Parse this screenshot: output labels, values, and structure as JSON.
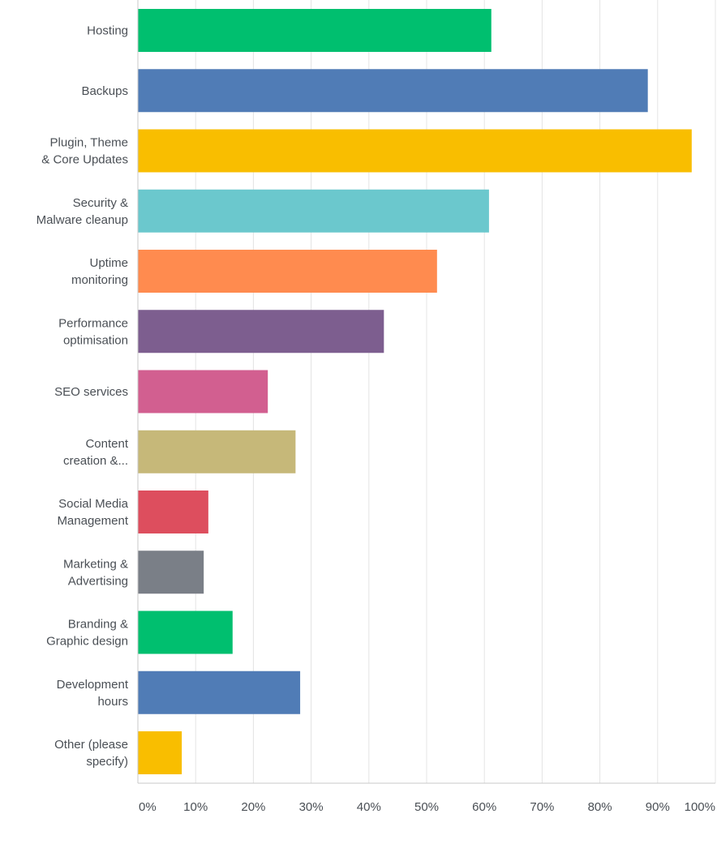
{
  "chart_data": {
    "type": "bar",
    "orientation": "horizontal",
    "title": "",
    "xlabel": "",
    "ylabel": "",
    "xlim": [
      0,
      100
    ],
    "grid": true,
    "legend": "none",
    "categories": [
      [
        "Hosting"
      ],
      [
        "Backups"
      ],
      [
        "Plugin, Theme",
        "& Core Updates"
      ],
      [
        "Security &",
        "Malware cleanup"
      ],
      [
        "Uptime",
        "monitoring"
      ],
      [
        "Performance",
        "optimisation"
      ],
      [
        "SEO services"
      ],
      [
        "Content",
        "creation &..."
      ],
      [
        "Social Media",
        "Management"
      ],
      [
        "Marketing &",
        "Advertising"
      ],
      [
        "Branding &",
        "Graphic design"
      ],
      [
        "Development",
        "hours"
      ],
      [
        "Other (please",
        "specify)"
      ]
    ],
    "values": [
      61.2,
      88.3,
      95.9,
      60.8,
      51.8,
      42.6,
      22.5,
      27.3,
      12.2,
      11.4,
      16.4,
      28.1,
      7.6
    ],
    "colors": [
      "#00bf6f",
      "#507cb6",
      "#f9be00",
      "#6bc8cd",
      "#ff8b4f",
      "#7d5e8f",
      "#d25f90",
      "#c6b879",
      "#dd4e5e",
      "#7a7f87",
      "#00bf6f",
      "#507cb6",
      "#f9be00"
    ],
    "x_ticks": [
      0,
      10,
      20,
      30,
      40,
      50,
      60,
      70,
      80,
      90,
      100
    ],
    "x_tick_labels": [
      "0%",
      "10%",
      "20%",
      "30%",
      "40%",
      "50%",
      "60%",
      "70%",
      "80%",
      "90%",
      "100%"
    ]
  }
}
